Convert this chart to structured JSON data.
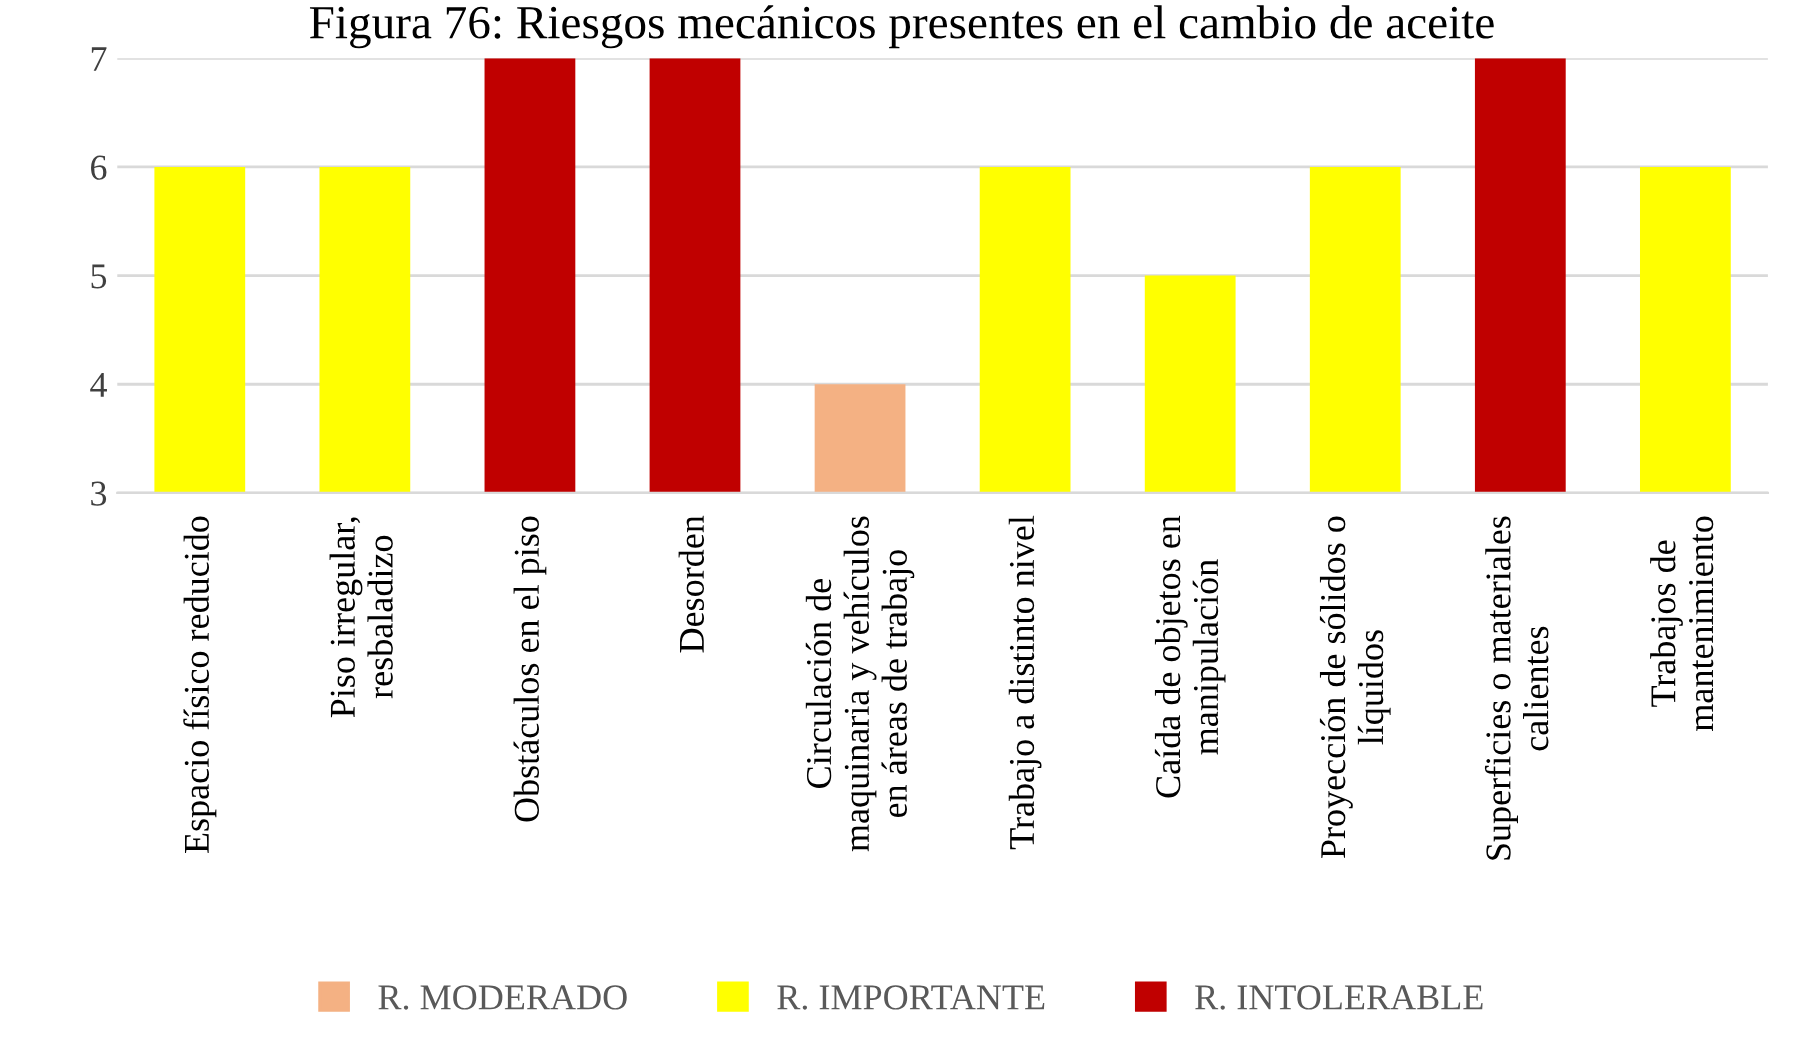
{
  "chart_data": {
    "type": "bar",
    "title": "Figura 76: Riesgos mecánicos presentes en el cambio de aceite",
    "categories": [
      "Espacio físico reducido",
      "Piso irregular,\nresbaladizo",
      "Obstáculos en el piso",
      "Desorden",
      "Circulación de\nmaquinaria y vehículos\nen áreas de trabajo",
      "Trabajo a distinto nivel",
      "Caída de objetos en\nmanipulación",
      "Proyección de sólidos o\nlíquidos",
      "Superficies o materiales\ncalientes",
      "Trabajos de\nmantenimiento"
    ],
    "series": [
      {
        "name": "R. MODERADO",
        "color": "#f4b183",
        "values": [
          null,
          null,
          null,
          null,
          4,
          null,
          null,
          null,
          null,
          null
        ]
      },
      {
        "name": "R. IMPORTANTE",
        "color": "#ffff00",
        "values": [
          6,
          6,
          null,
          null,
          null,
          6,
          5,
          6,
          null,
          6
        ]
      },
      {
        "name": "R. INTOLERABLE",
        "color": "#c00000",
        "values": [
          null,
          null,
          7,
          7,
          null,
          null,
          null,
          null,
          7,
          null
        ]
      }
    ],
    "stacked": true,
    "ylim": [
      3,
      7
    ],
    "yticks": [
      3,
      4,
      5,
      6,
      7
    ],
    "grid": "y",
    "legend": "bottom"
  }
}
